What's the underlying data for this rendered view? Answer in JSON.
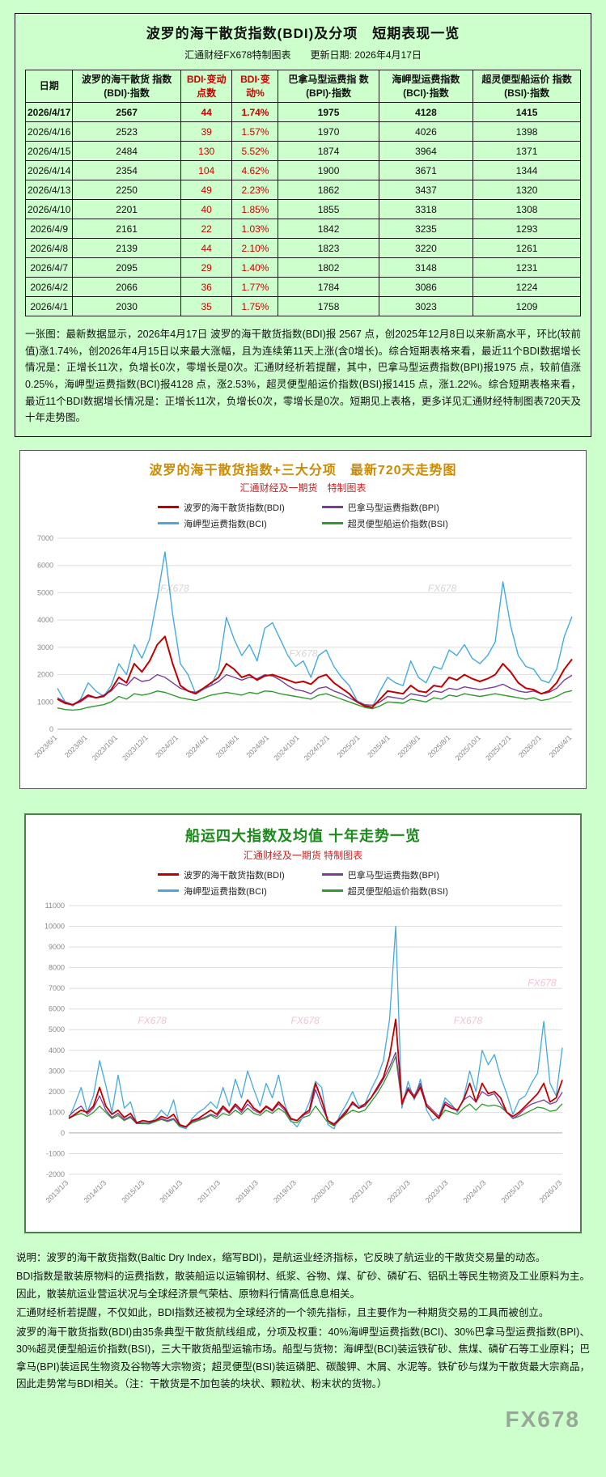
{
  "page": {
    "bg_color": "#ccffcc"
  },
  "table_section": {
    "title": "波罗的海干散货指数(BDI)及分项　短期表现一览",
    "subtitle": "汇通财经FX678特制图表　　更新日期: 2026年4月17日",
    "columns": [
      {
        "label": "日期",
        "red": false
      },
      {
        "label": "波罗的海干散货 指数(BDI)·指数",
        "red": false
      },
      {
        "label": "BDI·变动点数",
        "red": true
      },
      {
        "label": "BDI·变动%",
        "red": true
      },
      {
        "label": "巴拿马型运费指 数(BPI)·指数",
        "red": false
      },
      {
        "label": "海岬型运费指数 (BCI)·指数",
        "red": false
      },
      {
        "label": "超灵便型船运价 指数(BSI)·指数",
        "red": false
      }
    ],
    "rows": [
      [
        "2026/4/17",
        "2567",
        "44",
        "1.74%",
        "1975",
        "4128",
        "1415"
      ],
      [
        "2026/4/16",
        "2523",
        "39",
        "1.57%",
        "1970",
        "4026",
        "1398"
      ],
      [
        "2026/4/15",
        "2484",
        "130",
        "5.52%",
        "1874",
        "3964",
        "1371"
      ],
      [
        "2026/4/14",
        "2354",
        "104",
        "4.62%",
        "1900",
        "3671",
        "1344"
      ],
      [
        "2026/4/13",
        "2250",
        "49",
        "2.23%",
        "1862",
        "3437",
        "1320"
      ],
      [
        "2026/4/10",
        "2201",
        "40",
        "1.85%",
        "1855",
        "3318",
        "1308"
      ],
      [
        "2026/4/9",
        "2161",
        "22",
        "1.03%",
        "1842",
        "3235",
        "1293"
      ],
      [
        "2026/4/8",
        "2139",
        "44",
        "2.10%",
        "1823",
        "3220",
        "1261"
      ],
      [
        "2026/4/7",
        "2095",
        "29",
        "1.40%",
        "1802",
        "3148",
        "1231"
      ],
      [
        "2026/4/2",
        "2066",
        "36",
        "1.77%",
        "1784",
        "3086",
        "1224"
      ],
      [
        "2026/4/1",
        "2030",
        "35",
        "1.75%",
        "1758",
        "3023",
        "1209"
      ]
    ],
    "note": "一张图：最新数据显示，2026年4月17日 波罗的海干散货指数(BDI)报 2567 点，创2025年12月8日以来新高水平，环比(较前值)涨1.74%，创2026年4月15日以来最大涨幅，且为连续第11天上涨(含0增长)。综合短期表格来看，最近11个BDI数据增长情况是：正增长11次，负增长0次，零增长是0次。汇通财经析若提醒，其中，巴拿马型运费指数(BPI)报1975 点，较前值涨0.25%，海岬型运费指数(BCI)报4128 点，涨2.53%，超灵便型船运价指数(BSI)报1415 点，涨1.22%。综合短期表格来看，最近11个BDI数据增长情况是：正增长11次，负增长0次，零增长是0次。短期见上表格，更多详见汇通财经特制图表720天及十年走势图。"
  },
  "chart_data": [
    {
      "type": "line",
      "title": "波罗的海干散货指数+三大分项　最新720天走势图",
      "subtitle": "汇通财经及一期货　特制图表",
      "ylim": [
        0,
        7000
      ],
      "yticks": [
        0,
        1000,
        2000,
        3000,
        4000,
        5000,
        6000,
        7000
      ],
      "grid": true,
      "legend_position": "top",
      "watermark": "FX678",
      "watermark_color": "#c6c6c6",
      "x_labels": [
        "2023/6/1",
        "2023/8/1",
        "2023/10/1",
        "2023/12/1",
        "2024/2/1",
        "2024/4/1",
        "2024/6/1",
        "2024/8/1",
        "2024/10/1",
        "2024/12/1",
        "2025/2/1",
        "2025/4/1",
        "2025/6/1",
        "2025/8/1",
        "2025/10/1",
        "2025/12/1",
        "2026/2/1",
        "2026/4/1"
      ],
      "series": [
        {
          "name": "波罗的海干散货指数(BDI)",
          "short": "bdi",
          "color": "#c00000",
          "width": 2,
          "values": [
            1100,
            950,
            900,
            1050,
            1250,
            1150,
            1200,
            1450,
            1900,
            1700,
            2400,
            2100,
            2500,
            3100,
            3400,
            2400,
            1600,
            1400,
            1300,
            1500,
            1700,
            1900,
            2400,
            2200,
            1900,
            2000,
            1800,
            1950,
            2000,
            1900,
            1800,
            1700,
            1750,
            1650,
            1900,
            2000,
            1700,
            1500,
            1300,
            1000,
            850,
            800,
            1100,
            1400,
            1350,
            1300,
            1600,
            1400,
            1350,
            1600,
            1550,
            1900,
            1800,
            2000,
            1850,
            1750,
            1850,
            2000,
            2400,
            2100,
            1700,
            1500,
            1450,
            1300,
            1400,
            1700,
            2200,
            2567
          ]
        },
        {
          "name": "巴拿马型运费指数(BPI)",
          "short": "bpi",
          "color": "#7d3c98",
          "width": 1.4,
          "values": [
            1150,
            1000,
            900,
            1000,
            1200,
            1150,
            1250,
            1400,
            1700,
            1600,
            1900,
            1750,
            1800,
            2000,
            1900,
            1700,
            1500,
            1400,
            1350,
            1500,
            1600,
            1750,
            2000,
            1900,
            1800,
            1900,
            1850,
            2000,
            1950,
            1800,
            1600,
            1450,
            1400,
            1300,
            1500,
            1550,
            1400,
            1300,
            1150,
            1000,
            900,
            880,
            1000,
            1200,
            1150,
            1100,
            1300,
            1250,
            1200,
            1400,
            1350,
            1500,
            1450,
            1550,
            1500,
            1450,
            1500,
            1550,
            1650,
            1500,
            1400,
            1350,
            1400,
            1300,
            1350,
            1500,
            1800,
            1975
          ]
        },
        {
          "name": "海岬型运费指数(BCI)",
          "short": "bci",
          "color": "#44aae0",
          "width": 1.4,
          "values": [
            1500,
            1000,
            850,
            1100,
            1700,
            1400,
            1200,
            1600,
            2400,
            2000,
            3100,
            2600,
            3300,
            4800,
            6500,
            4200,
            2400,
            2000,
            1300,
            1450,
            1600,
            2200,
            4100,
            3300,
            2700,
            3100,
            2500,
            3700,
            3900,
            3300,
            2700,
            2300,
            2500,
            1900,
            2700,
            2900,
            2300,
            1900,
            1600,
            1050,
            900,
            800,
            1400,
            1900,
            1700,
            1600,
            2500,
            1900,
            1700,
            2300,
            2200,
            2900,
            2700,
            3100,
            2600,
            2400,
            2700,
            3200,
            5400,
            3800,
            2700,
            2300,
            2200,
            1800,
            1700,
            2200,
            3400,
            4128
          ]
        },
        {
          "name": "超灵便型船运价指数(BSI)",
          "short": "bsi",
          "color": "#2e9b2e",
          "width": 1.4,
          "values": [
            780,
            720,
            700,
            730,
            800,
            850,
            900,
            1000,
            1200,
            1100,
            1300,
            1250,
            1300,
            1400,
            1350,
            1250,
            1150,
            1100,
            1050,
            1150,
            1250,
            1300,
            1350,
            1300,
            1250,
            1350,
            1300,
            1400,
            1380,
            1300,
            1250,
            1200,
            1150,
            1100,
            1250,
            1300,
            1200,
            1100,
            1000,
            900,
            800,
            750,
            850,
            1000,
            980,
            950,
            1100,
            1050,
            1000,
            1150,
            1100,
            1250,
            1200,
            1300,
            1250,
            1200,
            1250,
            1300,
            1250,
            1200,
            1150,
            1100,
            1150,
            1050,
            1100,
            1200,
            1350,
            1415
          ]
        }
      ]
    },
    {
      "type": "line",
      "title": "船运四大指数及均值 十年走势一览",
      "subtitle": "汇通财经及一期货 特制图表",
      "ylim": [
        -2000,
        11000
      ],
      "yticks": [
        -2000,
        -1000,
        0,
        1000,
        2000,
        3000,
        4000,
        5000,
        6000,
        7000,
        8000,
        9000,
        10000,
        11000
      ],
      "grid": true,
      "legend_position": "top",
      "watermark": "FX678",
      "watermark_color": "#edaec0",
      "x_labels": [
        "2013/1/3",
        "2014/1/3",
        "2015/1/3",
        "2016/1/3",
        "2017/1/3",
        "2018/1/3",
        "2019/1/3",
        "2020/1/3",
        "2021/1/3",
        "2022/1/3",
        "2023/1/3",
        "2024/1/3",
        "2025/1/3",
        "2026/1/3"
      ],
      "series": [
        {
          "name": "波罗的海干散货指数(BDI)",
          "short": "bdi",
          "color": "#c00000",
          "width": 1.8,
          "values": [
            700,
            900,
            1100,
            1000,
            1300,
            2200,
            1300,
            900,
            1100,
            750,
            950,
            500,
            600,
            550,
            600,
            800,
            700,
            900,
            400,
            300,
            600,
            700,
            900,
            1100,
            900,
            1300,
            1000,
            1400,
            1100,
            1600,
            1200,
            1000,
            1300,
            1100,
            1500,
            1200,
            700,
            600,
            900,
            1100,
            2400,
            1600,
            600,
            400,
            700,
            1000,
            1500,
            1200,
            1400,
            1700,
            2200,
            2700,
            3700,
            5500,
            1400,
            2100,
            1700,
            2200,
            1300,
            1000,
            700,
            1400,
            1200,
            1100,
            1600,
            2400,
            1500,
            2400,
            1900,
            2000,
            1700,
            1000,
            800,
            1000,
            1300,
            1600,
            1900,
            2400,
            1500,
            1700,
            2567
          ]
        },
        {
          "name": "巴拿马型运费指数(BPI)",
          "short": "bpi",
          "color": "#7d3c98",
          "width": 1.3,
          "values": [
            800,
            1100,
            1300,
            900,
            1200,
            1800,
            1100,
            750,
            950,
            650,
            800,
            450,
            500,
            480,
            600,
            700,
            600,
            700,
            350,
            300,
            550,
            650,
            750,
            900,
            800,
            1200,
            950,
            1300,
            1000,
            1400,
            1100,
            950,
            1250,
            1050,
            1400,
            1100,
            650,
            600,
            850,
            1000,
            2100,
            1300,
            600,
            450,
            750,
            1100,
            1400,
            1200,
            1300,
            1700,
            2100,
            2600,
            3200,
            3900,
            1500,
            2200,
            1800,
            2400,
            1400,
            1100,
            800,
            1500,
            1300,
            1100,
            1600,
            1800,
            1500,
            2000,
            1800,
            1900,
            1400,
            1000,
            700,
            900,
            1200,
            1400,
            1500,
            1600,
            1400,
            1500,
            1975
          ]
        },
        {
          "name": "海岬型运费指数(BCI)",
          "short": "bci",
          "color": "#44aae0",
          "width": 1.3,
          "values": [
            700,
            1400,
            2200,
            1000,
            1800,
            3500,
            2300,
            1000,
            2800,
            1200,
            1500,
            500,
            500,
            450,
            700,
            1100,
            800,
            1600,
            300,
            200,
            700,
            1000,
            1200,
            1500,
            1200,
            2200,
            1300,
            2600,
            1700,
            3000,
            2100,
            1300,
            2400,
            1700,
            2800,
            1400,
            600,
            300,
            800,
            1500,
            2500,
            2200,
            400,
            200,
            900,
            1400,
            2000,
            1300,
            1400,
            2100,
            2700,
            3500,
            5500,
            10000,
            1200,
            2500,
            1600,
            2600,
            1100,
            600,
            800,
            1700,
            1400,
            1000,
            1700,
            3000,
            2000,
            4000,
            3300,
            3800,
            2700,
            1900,
            900,
            1600,
            1800,
            2400,
            2900,
            5400,
            2400,
            1800,
            4128
          ]
        },
        {
          "name": "超灵便型船运价指数(BSI)",
          "short": "bsi",
          "color": "#2e9b2e",
          "width": 1.3,
          "values": [
            700,
            850,
            950,
            800,
            1000,
            1300,
            1000,
            700,
            850,
            600,
            750,
            450,
            450,
            430,
            550,
            650,
            550,
            650,
            300,
            280,
            500,
            600,
            700,
            850,
            700,
            950,
            850,
            1100,
            900,
            1200,
            950,
            850,
            1100,
            950,
            1200,
            1000,
            550,
            500,
            750,
            850,
            1300,
            900,
            500,
            350,
            650,
            900,
            1100,
            1000,
            1100,
            1500,
            1900,
            2400,
            3000,
            3700,
            1400,
            2200,
            1800,
            2300,
            1300,
            1000,
            700,
            1100,
            1000,
            900,
            1200,
            1400,
            1100,
            1400,
            1300,
            1350,
            1250,
            1000,
            700,
            800,
            950,
            1100,
            1250,
            1200,
            1050,
            1100,
            1415
          ]
        }
      ]
    }
  ],
  "footer": {
    "paragraphs": [
      "说明：波罗的海干散货指数(Baltic Dry Index，缩写BDI)，是航运业经济指标，它反映了航运业的干散货交易量的动态。",
      "BDI指数是散装原物料的运费指数，散装船运以运输钢材、纸浆、谷物、煤、矿砂、磷矿石、铝矾土等民生物资及工业原料为主。因此，散装航运业营运状况与全球经济景气荣枯、原物料行情高低息息相关。",
      "汇通财经析若提醒，不仅如此，BDI指数还被视为全球经济的一个领先指标，且主要作为一种期货交易的工具而被创立。",
      "波罗的海干散货指数(BDI)由35条典型干散货航线组成，分项及权重：40%海岬型运费指数(BCI)、30%巴拿马型运费指数(BPI)、30%超灵便型船运价指数(BSI)，三大干散货船型运输市场。船型与货物：海岬型(BCI)装运铁矿砂、焦煤、磷矿石等工业原料；巴拿马(BPI)装运民生物资及谷物等大宗物资；超灵便型(BSI)装运磷肥、碳酸钾、木屑、水泥等。铁矿砂与煤为干散货最大宗商品，因此走势常与BDI相关。（注：干散货是不加包装的块状、颗粒状、粉末状的货物。）"
    ],
    "watermark": "FX678"
  }
}
